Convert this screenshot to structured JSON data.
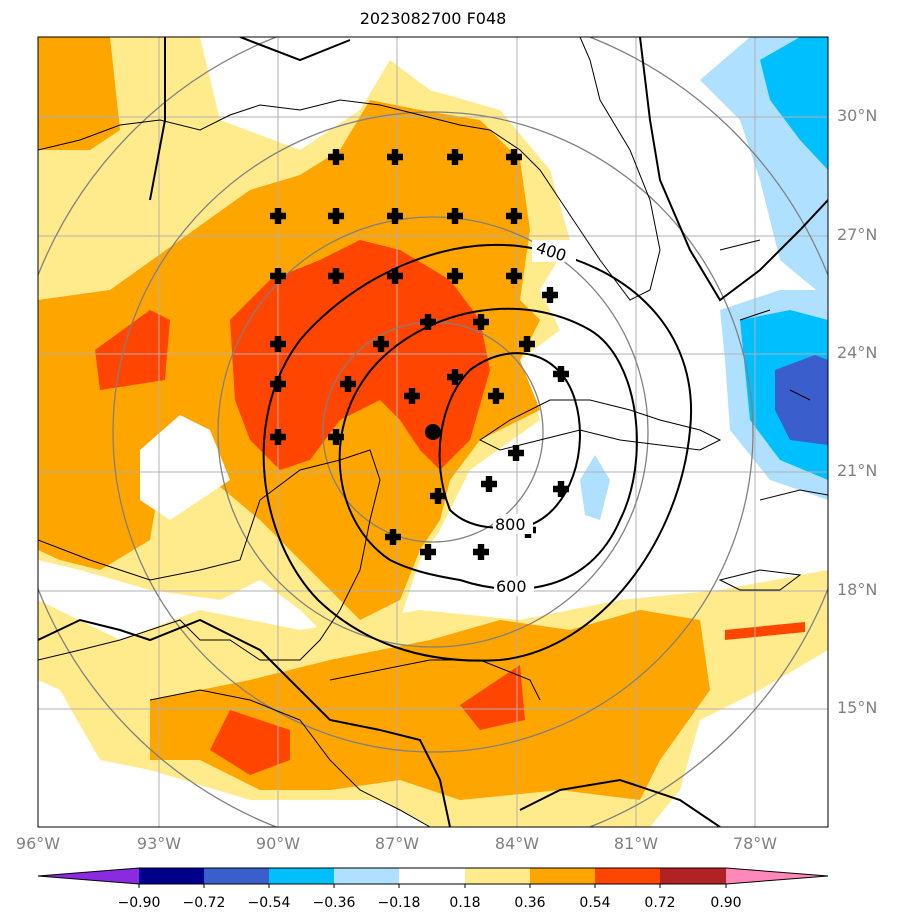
{
  "title": "2023082700 F048",
  "map": {
    "lat_labels": [
      "30°N",
      "27°N",
      "24°N",
      "21°N",
      "18°N",
      "15°N"
    ],
    "lon_labels": [
      "96°W",
      "93°W",
      "90°W",
      "87°W",
      "84°W",
      "81°W",
      "78°W"
    ],
    "contour_labels": [
      "400",
      "600",
      "800"
    ]
  },
  "colorbar": {
    "tick_labels": [
      "−0.90",
      "−0.72",
      "−0.54",
      "−0.36",
      "−0.18",
      "0.18",
      "0.36",
      "0.54",
      "0.72",
      "0.90"
    ],
    "colors": [
      "#8a2be2",
      "#00008b",
      "#3a5fcd",
      "#00bfff",
      "#b0e0ff",
      "#ffffff",
      "#ffeb8c",
      "#ffa500",
      "#ff4500",
      "#b22222",
      "#ff88bb"
    ]
  },
  "colors": {
    "light_yellow": "#ffeb8c",
    "orange": "#ffa500",
    "red_orange": "#ff4500",
    "light_blue": "#b0e0ff",
    "sky_blue": "#00bfff",
    "royal_blue": "#3a5fcd",
    "range_ring": "#808080",
    "grid": "#b0b0b0"
  }
}
